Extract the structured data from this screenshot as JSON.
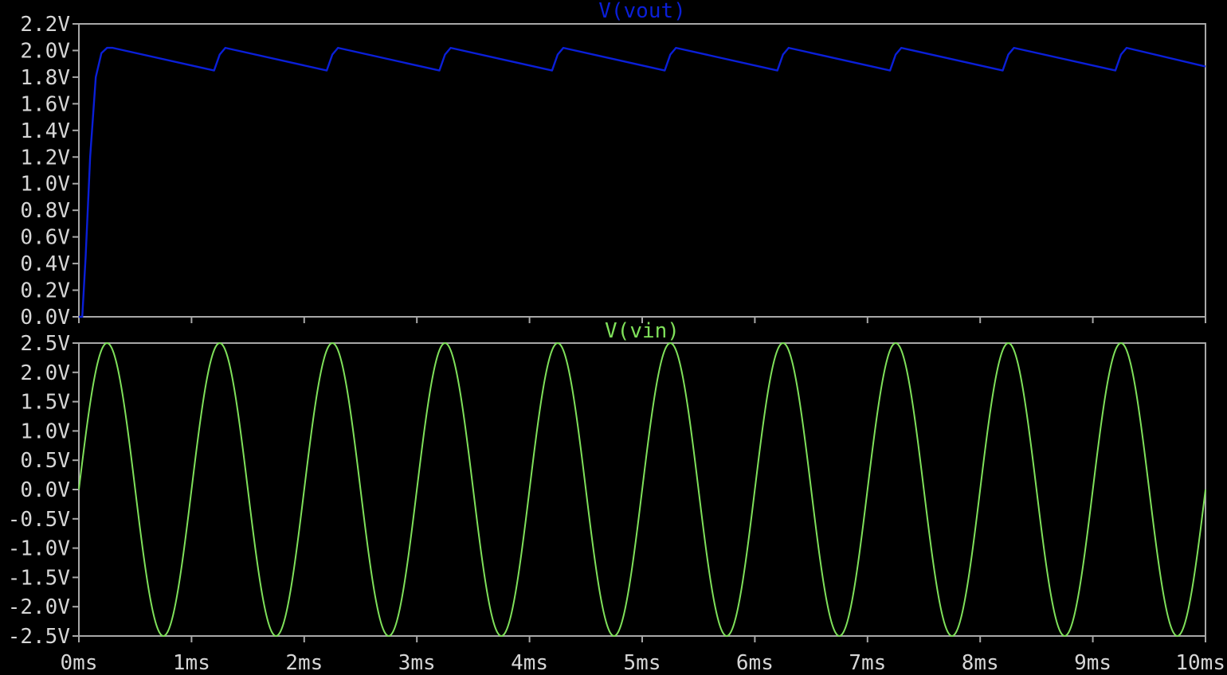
{
  "chart_data": [
    {
      "type": "line",
      "title": "V(vout)",
      "xlabel": "",
      "ylabel": "",
      "xlim": [
        0,
        10
      ],
      "ylim": [
        0,
        2.2
      ],
      "x_unit": "ms",
      "y_ticks": [
        "0.0V",
        "0.2V",
        "0.4V",
        "0.6V",
        "0.8V",
        "1.0V",
        "1.2V",
        "1.4V",
        "1.6V",
        "1.8V",
        "2.0V",
        "2.2V"
      ],
      "y_tick_values": [
        0,
        0.2,
        0.4,
        0.6,
        0.8,
        1.0,
        1.2,
        1.4,
        1.6,
        1.8,
        2.0,
        2.2
      ],
      "grid": false,
      "color": "#0a1fd8",
      "series": [
        {
          "x": [
            0,
            0.03,
            0.06,
            0.1,
            0.15,
            0.2,
            0.25,
            0.3,
            1.2,
            1.25,
            1.3,
            2.2,
            2.25,
            2.3,
            3.2,
            3.25,
            3.3,
            4.2,
            4.25,
            4.3,
            5.2,
            5.25,
            5.3,
            6.2,
            6.25,
            6.3,
            7.2,
            7.25,
            7.3,
            8.2,
            8.25,
            8.3,
            9.2,
            9.25,
            9.3,
            10.0
          ],
          "values": [
            0,
            0.0,
            0.45,
            1.2,
            1.8,
            1.98,
            2.02,
            2.02,
            1.85,
            1.97,
            2.02,
            1.85,
            1.97,
            2.02,
            1.85,
            1.97,
            2.02,
            1.85,
            1.97,
            2.02,
            1.85,
            1.97,
            2.02,
            1.85,
            1.97,
            2.02,
            1.85,
            1.97,
            2.02,
            1.85,
            1.97,
            2.02,
            1.85,
            1.97,
            2.02,
            1.88
          ]
        }
      ]
    },
    {
      "type": "line",
      "title": "V(vin)",
      "xlabel": "",
      "ylabel": "",
      "xlim": [
        0,
        10
      ],
      "ylim": [
        -2.5,
        2.5
      ],
      "x_unit": "ms",
      "y_ticks": [
        "-2.5V",
        "-2.0V",
        "-1.5V",
        "-1.0V",
        "-0.5V",
        "0.0V",
        "0.5V",
        "1.0V",
        "1.5V",
        "2.0V",
        "2.5V"
      ],
      "y_tick_values": [
        -2.5,
        -2.0,
        -1.5,
        -1.0,
        -0.5,
        0,
        0.5,
        1.0,
        1.5,
        2.0,
        2.5
      ],
      "x_ticks": [
        "0ms",
        "1ms",
        "2ms",
        "3ms",
        "4ms",
        "5ms",
        "6ms",
        "7ms",
        "8ms",
        "9ms",
        "10ms"
      ],
      "x_tick_values": [
        0,
        1,
        2,
        3,
        4,
        5,
        6,
        7,
        8,
        9,
        10
      ],
      "grid": false,
      "color": "#7fe05a",
      "series": [
        {
          "function": "sine",
          "amplitude": 2.5,
          "offset": 0,
          "frequency_khz": 1,
          "phase": 0
        }
      ]
    }
  ],
  "colors": {
    "background": "#000000",
    "frame": "#a8a8a8",
    "tick_text": "#d6d6d6"
  }
}
